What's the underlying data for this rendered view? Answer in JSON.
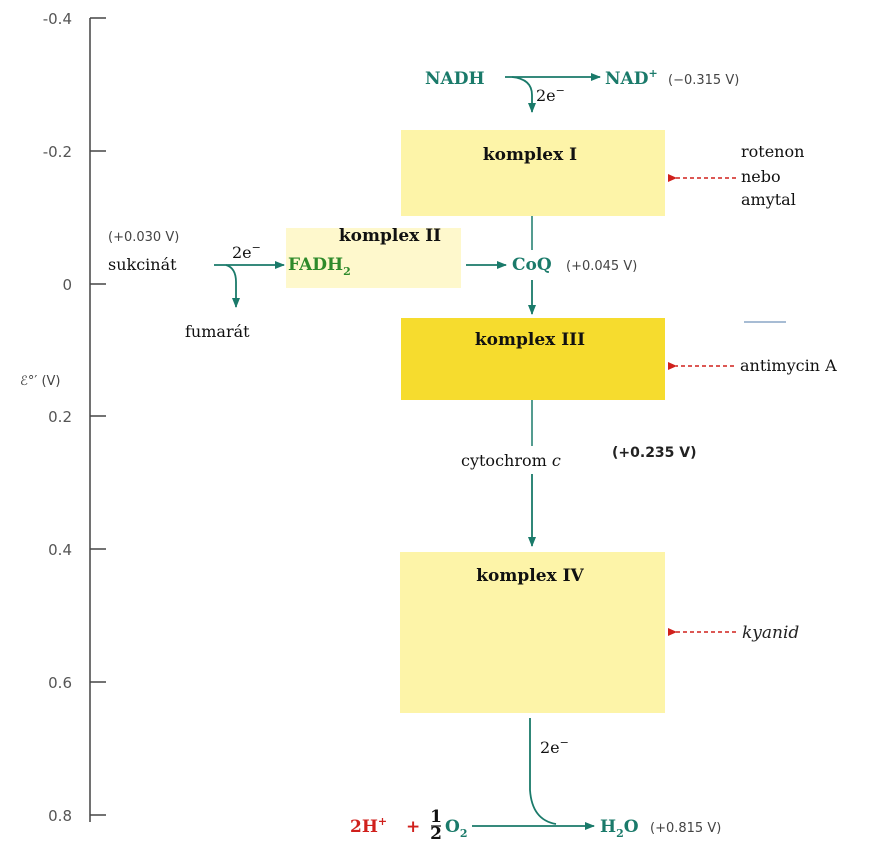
{
  "axis": {
    "ticks": [
      "-0.4",
      "-0.2",
      "0",
      "0.2",
      "0.4",
      "0.6",
      "0.8"
    ],
    "label": "ℰ°′ (V)"
  },
  "complexes": {
    "c1": "komplex I",
    "c2": "komplex II",
    "c3": "komplex III",
    "c4": "komplex IV"
  },
  "nadh": {
    "left": "NADH",
    "right": "NAD",
    "right_sup": "+",
    "potential": "(−0.315 V)",
    "electrons": "2e",
    "electrons_sup": "−"
  },
  "succinate": {
    "potential": "(+0.030 V)",
    "name": "sukcinát",
    "electrons": "2e",
    "electrons_sup": "−",
    "fadh": "FADH",
    "fadh_sub": "2",
    "product": "fumarát"
  },
  "coq": {
    "name": "CoQ",
    "potential": "(+0.045 V)"
  },
  "cytochrome": {
    "name": "cytochrom",
    "letter": "c",
    "potential": "(+0.235 V)"
  },
  "oxygen": {
    "electrons": "2e",
    "electrons_sup": "−",
    "left": "2H",
    "left_sup": "+",
    "plus": "+",
    "frac_num": "1",
    "frac_den": "2",
    "o2": "O",
    "o2_sub": "2",
    "product": "H",
    "product_sub": "2",
    "product_tail": "O",
    "potential": "(+0.815 V)"
  },
  "inhibitors": {
    "rotenon": [
      "rotenon",
      "nebo",
      "amytal"
    ],
    "antimycin": "antimycin A",
    "cyanide": "kyanid"
  },
  "colors": {
    "box_light": "#fdf4a8",
    "box_strong": "#f6dc2e",
    "teal": "#1a7a6a",
    "red": "#d0201c"
  }
}
